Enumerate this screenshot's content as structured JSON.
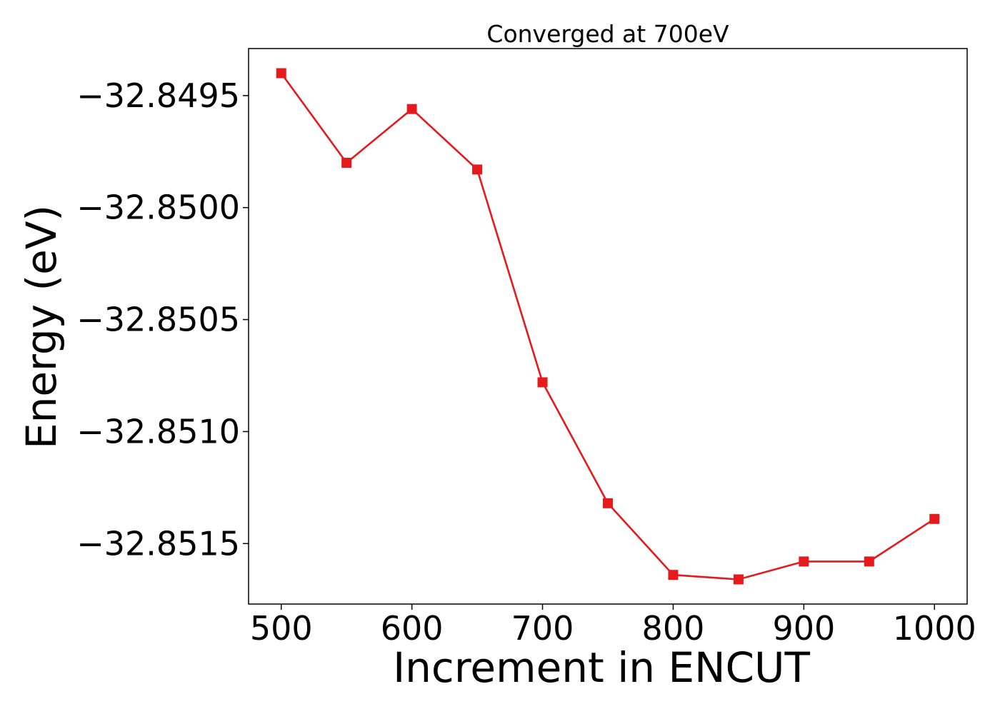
{
  "chart_data": {
    "type": "line",
    "title": "Converged at 700eV",
    "xlabel": "Increment in ENCUT",
    "ylabel": "Energy (eV)",
    "x": [
      500,
      550,
      600,
      650,
      700,
      750,
      800,
      850,
      900,
      950,
      1000
    ],
    "series": [
      {
        "values": [
          -32.8494,
          -32.8498,
          -32.84956,
          -32.84983,
          -32.85078,
          -32.85132,
          -32.85164,
          -32.85166,
          -32.85158,
          -32.85158,
          -32.85139
        ],
        "color": "#e41a1c",
        "marker": "square"
      }
    ],
    "xlim": [
      475,
      1025
    ],
    "ylim": [
      -32.85177,
      -32.84929
    ],
    "xticks": [
      500,
      600,
      700,
      800,
      900,
      1000
    ],
    "xtick_labels": [
      "500",
      "600",
      "700",
      "800",
      "900",
      "1000"
    ],
    "yticks": [
      -32.8495,
      -32.85,
      -32.8505,
      -32.851,
      -32.8515
    ],
    "ytick_labels": [
      "−32.8495",
      "−32.8500",
      "−32.8505",
      "−32.8510",
      "−32.8515"
    ],
    "grid": false,
    "legend": "none"
  }
}
